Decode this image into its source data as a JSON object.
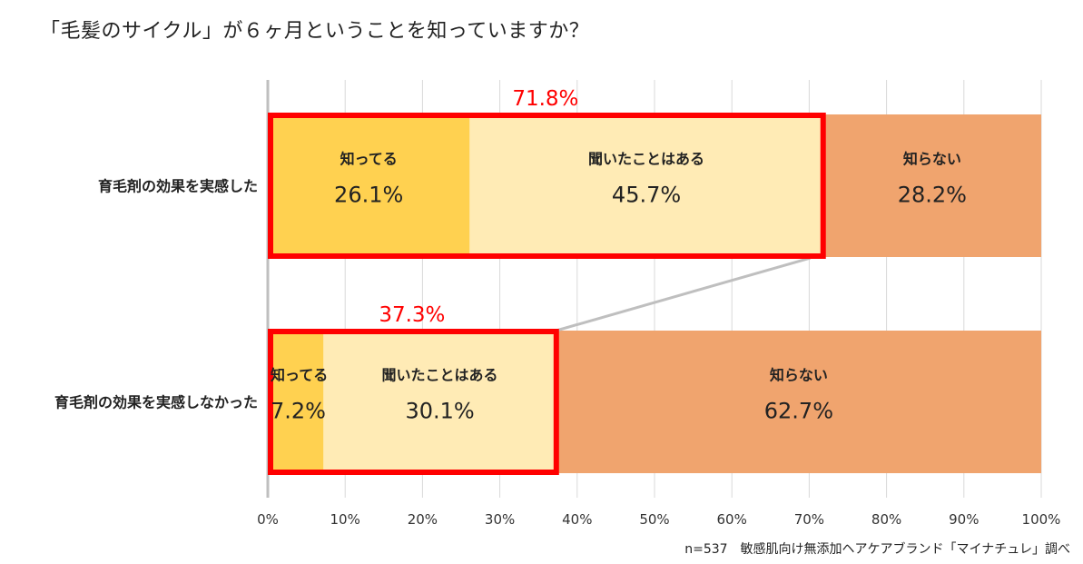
{
  "title": "「毛髪のサイクル」が６ヶ月ということを知っていますか？",
  "source_note": "n=537　敏感肌向け無添加ヘアケアブランド「マイナチュレ」調べ",
  "colors": {
    "know": "#FFD150",
    "heard": "#FFEBB5",
    "dont_know": "#F0A46E",
    "highlight": "#FF0000",
    "grid": "#D9D9D9",
    "connector": "#BFBFBF"
  },
  "chart_data": {
    "type": "bar",
    "orientation": "horizontal",
    "stacked": "100%",
    "title": "「毛髪のサイクル」が６ヶ月ということを知っていますか？",
    "categories": [
      "育毛剤の効果を実感した",
      "育毛剤の効果を実感しなかった"
    ],
    "series": [
      {
        "name": "知ってる",
        "values": [
          26.1,
          7.2
        ]
      },
      {
        "name": "聞いたことはある",
        "values": [
          45.7,
          30.1
        ]
      },
      {
        "name": "知らない",
        "values": [
          28.2,
          62.7
        ]
      }
    ],
    "highlight_totals": [
      "71.8%",
      "37.3%"
    ],
    "x_ticks": [
      "0%",
      "10%",
      "20%",
      "30%",
      "40%",
      "50%",
      "60%",
      "70%",
      "80%",
      "90%",
      "100%"
    ],
    "xlim": [
      0,
      100
    ],
    "grid": true,
    "legend": "none"
  }
}
